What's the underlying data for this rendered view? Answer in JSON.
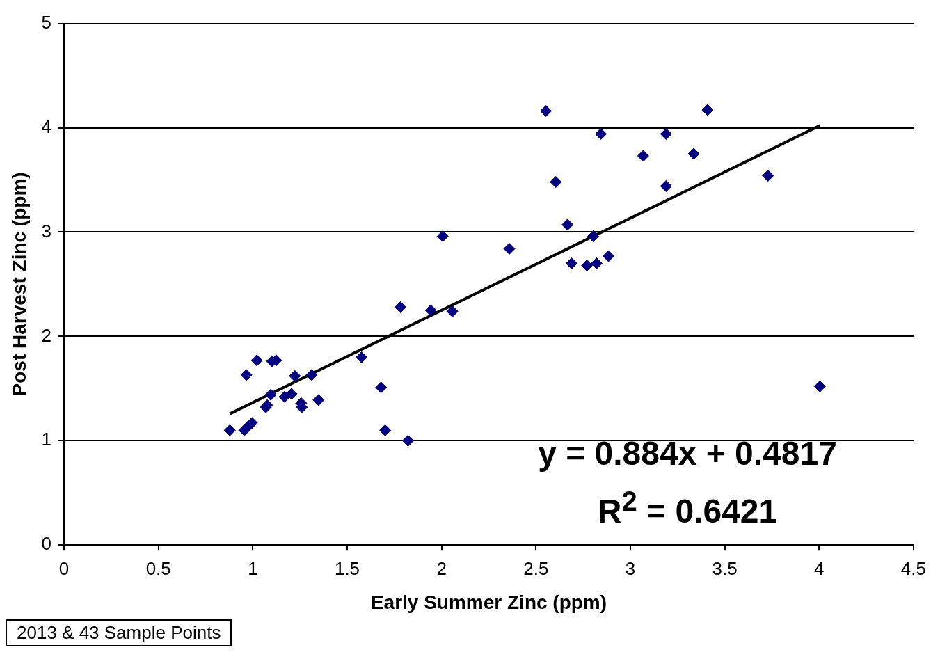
{
  "chart_data": {
    "type": "scatter",
    "xlabel": "Early Summer Zinc (ppm)",
    "ylabel": "Post Harvest Zinc (ppm)",
    "xlim": [
      0,
      4.5
    ],
    "xticks": [
      0,
      0.5,
      1,
      1.5,
      2,
      2.5,
      3,
      3.5,
      4,
      4.5
    ],
    "ylim": [
      0,
      5
    ],
    "yticks": [
      0,
      1,
      2,
      3,
      4,
      5
    ],
    "grid": "y",
    "legend": false,
    "marker": "diamond",
    "series": [
      {
        "color": "#000080",
        "x": [
          0.878,
          0.966,
          1.021,
          0.955,
          0.977,
          0.996,
          1.069,
          1.076,
          1.095,
          1.102,
          1.124,
          1.168,
          1.205,
          1.223,
          1.256,
          1.26,
          1.312,
          1.348,
          1.576,
          1.679,
          1.701,
          1.822,
          1.782,
          1.943,
          2.006,
          2.057,
          2.359,
          2.553,
          2.605,
          2.667,
          2.689,
          2.77,
          2.803,
          2.821,
          2.844,
          2.884,
          3.068,
          3.189,
          3.189,
          3.336,
          3.409,
          3.729,
          4.004
        ],
        "values": [
          1.1,
          1.63,
          1.77,
          1.1,
          1.14,
          1.17,
          1.32,
          1.34,
          1.44,
          1.76,
          1.77,
          1.42,
          1.45,
          1.62,
          1.36,
          1.32,
          1.63,
          1.39,
          1.8,
          1.51,
          1.1,
          1.0,
          2.28,
          2.25,
          2.96,
          2.24,
          2.84,
          4.16,
          3.48,
          3.07,
          2.7,
          2.68,
          2.96,
          2.7,
          3.94,
          2.77,
          3.73,
          3.94,
          3.44,
          3.75,
          4.17,
          3.54,
          1.52
        ]
      },
      {
        "type": "line",
        "color": "#000000",
        "marker": "none",
        "x": [
          0.878,
          4.004
        ],
        "values": [
          1.258,
          4.021
        ]
      }
    ],
    "annotations": [
      "y = 0.884x + 0.4817",
      "R$^{2}$ = 0.6421",
      "2013 & 43 Sample Points"
    ]
  }
}
